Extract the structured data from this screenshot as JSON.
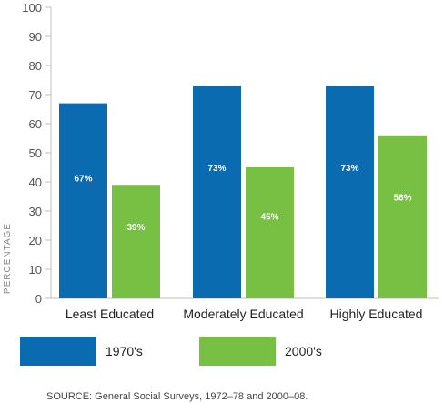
{
  "chart_data": {
    "type": "bar",
    "categories": [
      "Least Educated",
      "Moderately Educated",
      "Highly Educated"
    ],
    "series": [
      {
        "name": "1970's",
        "values": [
          67,
          73,
          73
        ],
        "labels": [
          "67%",
          "73%",
          "73%"
        ],
        "color": "#0a6bb0"
      },
      {
        "name": "2000's",
        "values": [
          39,
          45,
          56
        ],
        "labels": [
          "39%",
          "45%",
          "56%"
        ],
        "color": "#77c043"
      }
    ],
    "yticks": [
      "0",
      "10",
      "20",
      "30",
      "40",
      "50",
      "60",
      "70",
      "80",
      "90",
      "100"
    ],
    "ylim": [
      0,
      100
    ],
    "ylabel": "PERCENTAGE",
    "xlabel": "",
    "grid": false,
    "legend_position": "bottom-left",
    "source": "SOURCE: General Social Surveys, 1972–78 and 2000–08."
  }
}
